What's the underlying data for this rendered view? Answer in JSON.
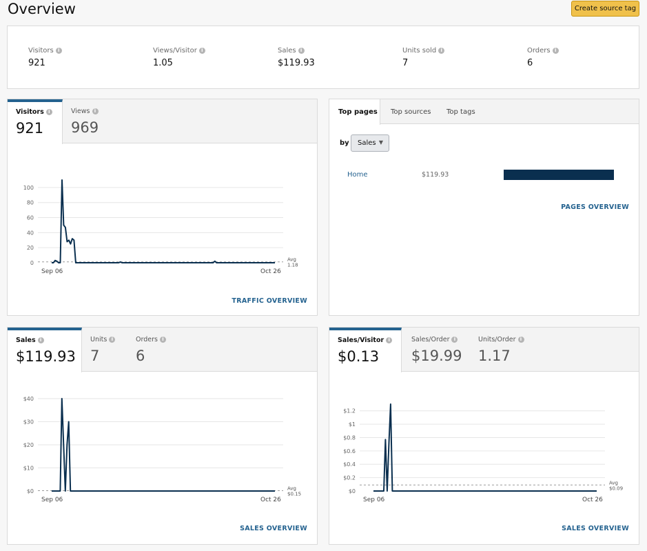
{
  "page": {
    "title": "Overview",
    "create_button": "Create source tag"
  },
  "summary": [
    {
      "label": "Visitors",
      "value": "921"
    },
    {
      "label": "Views/Visitor",
      "value": "1.05"
    },
    {
      "label": "Sales",
      "value": "$119.93"
    },
    {
      "label": "Units sold",
      "value": "7"
    },
    {
      "label": "Orders",
      "value": "6"
    }
  ],
  "traffic": {
    "tabs": [
      {
        "label": "Visitors",
        "value": "921"
      },
      {
        "label": "Views",
        "value": "969"
      }
    ],
    "link": "TRAFFIC OVERVIEW"
  },
  "top": {
    "tabs": [
      "Top pages",
      "Top sources",
      "Top tags"
    ],
    "by_label": "by",
    "select_value": "Sales",
    "rows": [
      {
        "label": "Home",
        "value": "$119.93",
        "share": 1.0
      }
    ],
    "link": "PAGES OVERVIEW"
  },
  "sales": {
    "tabs": [
      {
        "label": "Sales",
        "value": "$119.93"
      },
      {
        "label": "Units",
        "value": "7"
      },
      {
        "label": "Orders",
        "value": "6"
      }
    ],
    "link": "SALES OVERVIEW"
  },
  "spv": {
    "tabs": [
      {
        "label": "Sales/Visitor",
        "value": "$0.13"
      },
      {
        "label": "Sales/Order",
        "value": "$19.99"
      },
      {
        "label": "Units/Order",
        "value": "1.17"
      }
    ],
    "link": "SALES OVERVIEW"
  },
  "chart_data": [
    {
      "type": "line",
      "xticks": [
        "Sep 06",
        "Oct 26"
      ],
      "yticks": [
        "0",
        "20",
        "40",
        "60",
        "80",
        "100"
      ],
      "ylim": [
        0,
        110
      ],
      "avg_label": "Avg",
      "avg_value": "1.18",
      "avg": 1.18,
      "values": [
        0,
        0,
        3,
        2,
        0,
        0,
        110,
        50,
        47,
        28,
        30,
        25,
        32,
        30,
        0,
        0,
        0,
        0,
        0,
        0,
        0,
        0,
        0,
        0,
        0,
        0,
        0,
        0,
        0,
        0,
        0,
        0,
        0,
        0,
        0,
        0,
        0,
        0,
        0,
        0,
        1,
        0,
        0,
        0,
        0,
        0,
        0,
        0,
        0,
        0,
        0,
        0,
        0,
        0,
        0,
        0,
        0,
        0,
        0,
        0,
        0,
        0,
        0,
        0,
        0,
        0,
        0,
        0,
        0,
        0,
        0,
        0,
        0,
        0,
        0,
        0,
        0,
        0,
        0,
        0,
        0,
        0,
        0,
        0,
        0,
        0,
        0,
        0,
        0,
        0,
        0,
        0,
        0,
        0,
        0,
        2,
        0,
        0,
        0,
        0,
        0,
        0,
        0,
        0,
        0,
        0,
        0,
        0,
        0,
        0,
        0,
        0,
        0,
        0,
        0,
        0,
        0,
        0,
        0,
        0,
        0,
        0,
        0,
        0,
        0,
        0,
        0,
        0,
        0,
        0,
        0
      ]
    },
    {
      "type": "line",
      "xticks": [
        "Sep 06",
        "Oct 26"
      ],
      "yticks": [
        "$0",
        "$10",
        "$20",
        "$30",
        "$40"
      ],
      "ylim": [
        0,
        40
      ],
      "avg_label": "Avg",
      "avg_value": "$0.15",
      "avg": 0.15,
      "values": [
        0,
        0,
        0,
        0,
        0,
        0,
        40,
        20,
        0,
        20,
        30,
        0,
        0,
        0,
        0,
        0,
        0,
        0,
        0,
        0,
        0,
        0,
        0,
        0,
        0,
        0,
        0,
        0,
        0,
        0,
        0,
        0,
        0,
        0,
        0,
        0,
        0,
        0,
        0,
        0,
        0,
        0,
        0,
        0,
        0,
        0,
        0,
        0,
        0,
        0,
        0,
        0,
        0,
        0,
        0,
        0,
        0,
        0,
        0,
        0,
        0,
        0,
        0,
        0,
        0,
        0,
        0,
        0,
        0,
        0,
        0,
        0,
        0,
        0,
        0,
        0,
        0,
        0,
        0,
        0,
        0,
        0,
        0,
        0,
        0,
        0,
        0,
        0,
        0,
        0,
        0,
        0,
        0,
        0,
        0,
        0,
        0,
        0,
        0,
        0,
        0,
        0,
        0,
        0,
        0,
        0,
        0,
        0,
        0,
        0,
        0,
        0,
        0,
        0,
        0,
        0,
        0,
        0,
        0,
        0,
        0,
        0,
        0,
        0,
        0,
        0,
        0,
        0,
        0,
        0,
        0,
        0
      ]
    },
    {
      "type": "line",
      "xticks": [
        "Sep 06",
        "Oct 26"
      ],
      "yticks": [
        "$0",
        "$0.2",
        "$0.4",
        "$0.6",
        "$0.8",
        "$1",
        "$1.2"
      ],
      "ylim": [
        0,
        1.3
      ],
      "avg_label": "Avg",
      "avg_value": "$0.09",
      "avg": 0.09,
      "values": [
        0,
        0,
        0,
        0,
        0,
        0,
        0,
        0.77,
        0,
        0.7,
        1.3,
        0,
        0,
        0,
        0,
        0,
        0,
        0,
        0,
        0,
        0,
        0,
        0,
        0,
        0,
        0,
        0,
        0,
        0,
        0,
        0,
        0,
        0,
        0,
        0,
        0,
        0,
        0,
        0,
        0,
        0,
        0,
        0,
        0,
        0,
        0,
        0,
        0,
        0,
        0,
        0,
        0,
        0,
        0,
        0,
        0,
        0,
        0,
        0,
        0,
        0,
        0,
        0,
        0,
        0,
        0,
        0,
        0,
        0,
        0,
        0,
        0,
        0,
        0,
        0,
        0,
        0,
        0,
        0,
        0,
        0,
        0,
        0,
        0,
        0,
        0,
        0,
        0,
        0,
        0,
        0,
        0,
        0,
        0,
        0,
        0,
        0,
        0,
        0,
        0,
        0,
        0,
        0,
        0,
        0,
        0,
        0,
        0,
        0,
        0,
        0,
        0,
        0,
        0,
        0,
        0,
        0,
        0,
        0,
        0,
        0,
        0,
        0,
        0,
        0,
        0,
        0,
        0,
        0,
        0,
        0
      ]
    }
  ],
  "colors": {
    "line": "#0a2f4f",
    "link": "#24628f",
    "accent_tab": "#24628f",
    "button": "#f0c14b"
  }
}
